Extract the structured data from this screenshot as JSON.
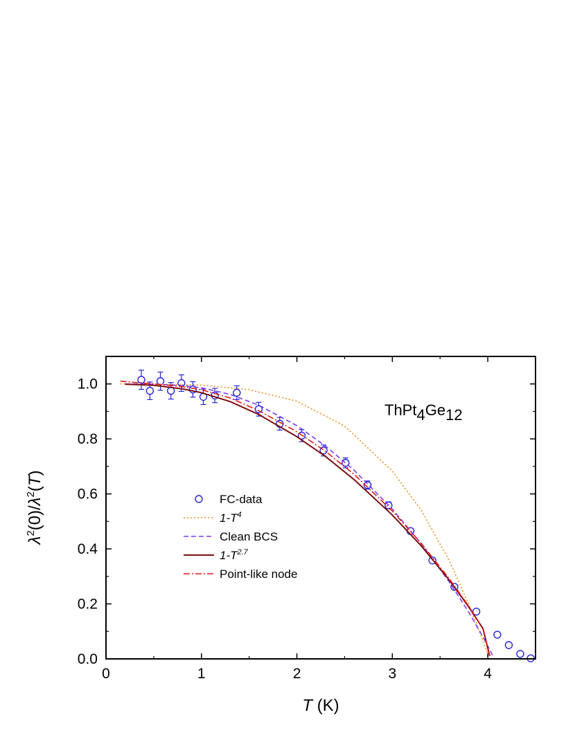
{
  "chart_data": {
    "type": "scatter",
    "title": "",
    "annotation": {
      "text": "ThPt",
      "parts": [
        {
          "t": "ThPt",
          "sub": false
        },
        {
          "t": "4",
          "sub": true
        },
        {
          "t": "Ge",
          "sub": false
        },
        {
          "t": "12",
          "sub": true
        }
      ]
    },
    "xlabel": {
      "italic": "T",
      "rest": " (K)"
    },
    "ylabel": {
      "text": "λ²(0)/λ²(T)"
    },
    "xlim": [
      0,
      4.5
    ],
    "ylim": [
      0,
      1.1
    ],
    "xticks": [
      0,
      1,
      2,
      3,
      4
    ],
    "yticks": [
      0.0,
      0.2,
      0.4,
      0.6,
      0.8,
      1.0
    ],
    "xtick_labels": [
      "0",
      "1",
      "2",
      "3",
      "4"
    ],
    "ytick_labels": [
      "0.0",
      "0.2",
      "0.4",
      "0.6",
      "0.8",
      "1.0"
    ],
    "legend_position": "center-left",
    "series": [
      {
        "name": "FC-data",
        "style": "markers",
        "color": "#2424d8",
        "x": [
          0.37,
          0.46,
          0.57,
          0.68,
          0.79,
          0.91,
          1.02,
          1.14,
          1.37,
          1.6,
          1.82,
          2.05,
          2.28,
          2.51,
          2.74,
          2.96,
          3.19,
          3.42,
          3.65,
          3.88,
          4.1,
          4.22,
          4.34,
          4.45
        ],
        "y": [
          1.015,
          0.975,
          1.01,
          0.975,
          1.003,
          0.98,
          0.953,
          0.958,
          0.968,
          0.908,
          0.855,
          0.812,
          0.758,
          0.713,
          0.632,
          0.558,
          0.465,
          0.358,
          0.262,
          0.172,
          0.088,
          0.05,
          0.018,
          0.002
        ],
        "yerr": [
          0.035,
          0.032,
          0.033,
          0.03,
          0.03,
          0.028,
          0.028,
          0.026,
          0.025,
          0.025,
          0.023,
          0.022,
          0.02,
          0.018,
          0.015,
          0.013,
          0.01,
          0.008,
          0.006,
          0.005,
          0.004,
          0.004,
          0.003,
          0.003
        ]
      },
      {
        "name": "1-T",
        "legend_sup": "4",
        "style": "dotted",
        "color": "#f28c1c",
        "x": [
          0.15,
          0.5,
          1.0,
          1.5,
          2.0,
          2.5,
          3.0,
          3.3,
          3.6,
          3.8,
          3.9,
          4.0
        ],
        "y": [
          1.0,
          0.999,
          0.996,
          0.979,
          0.937,
          0.847,
          0.683,
          0.542,
          0.355,
          0.198,
          0.111,
          0.018
        ]
      },
      {
        "name": "Clean BCS",
        "style": "dashed",
        "color": "#7a3cf0",
        "x": [
          0.2,
          0.5,
          0.8,
          1.0,
          1.3,
          1.6,
          2.0,
          2.3,
          2.6,
          3.0,
          3.3,
          3.6,
          3.8,
          3.95,
          4.05
        ],
        "y": [
          1.0,
          0.999,
          0.994,
          0.986,
          0.962,
          0.923,
          0.848,
          0.774,
          0.686,
          0.545,
          0.42,
          0.278,
          0.17,
          0.08,
          0.012
        ]
      },
      {
        "name": "1-T",
        "legend_sup": "2.7",
        "style": "solid",
        "color": "#7a1010",
        "x": [
          0.2,
          0.5,
          0.8,
          1.0,
          1.3,
          1.6,
          2.0,
          2.3,
          2.6,
          3.0,
          3.3,
          3.6,
          3.8,
          3.95,
          4.02
        ],
        "y": [
          0.999,
          0.995,
          0.982,
          0.968,
          0.936,
          0.889,
          0.808,
          0.736,
          0.652,
          0.523,
          0.412,
          0.285,
          0.189,
          0.11,
          0.01
        ]
      },
      {
        "name": "Point-like node",
        "style": "dashdot",
        "color": "#e01818",
        "x": [
          0.15,
          0.5,
          0.8,
          1.0,
          1.3,
          1.6,
          2.0,
          2.3,
          2.6,
          3.0,
          3.3,
          3.6,
          3.8,
          3.95,
          4.02
        ],
        "y": [
          1.01,
          1.0,
          0.99,
          0.979,
          0.949,
          0.903,
          0.826,
          0.755,
          0.671,
          0.538,
          0.421,
          0.29,
          0.192,
          0.108,
          0.012
        ]
      }
    ]
  }
}
